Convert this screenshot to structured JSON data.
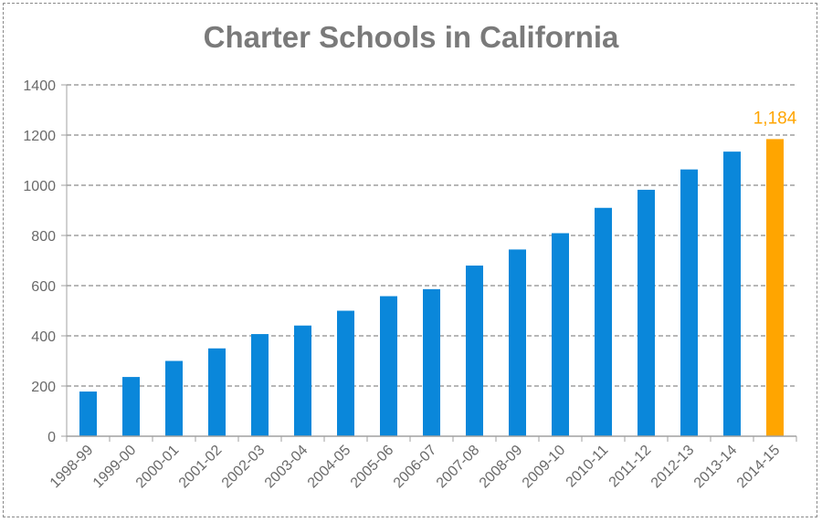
{
  "chart_data": {
    "type": "bar",
    "title": "Charter Schools in California",
    "xlabel": "",
    "ylabel": "",
    "ylim": [
      0,
      1400
    ],
    "yticks": [
      0,
      200,
      400,
      600,
      800,
      1000,
      1200,
      1400
    ],
    "grid": true,
    "categories": [
      "1998-99",
      "1999-00",
      "2000-01",
      "2001-02",
      "2002-03",
      "2003-04",
      "2004-05",
      "2005-06",
      "2006-07",
      "2007-08",
      "2008-09",
      "2009-10",
      "2010-11",
      "2011-12",
      "2012-13",
      "2013-14",
      "2014-15"
    ],
    "values": [
      178,
      236,
      300,
      350,
      407,
      441,
      500,
      558,
      586,
      680,
      744,
      809,
      910,
      982,
      1063,
      1134,
      1184
    ],
    "highlight_index": 16,
    "highlight_label": "1,184",
    "colors": {
      "bar": "#0a87da",
      "highlight": "#ffa500",
      "grid": "#8c8c8c",
      "axis": "#a0a0a0"
    }
  }
}
